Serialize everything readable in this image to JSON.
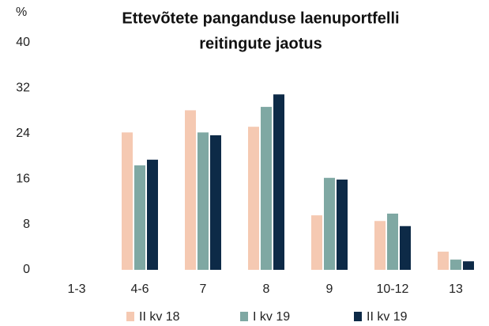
{
  "chart_data": {
    "type": "bar",
    "title": [
      "Ettevõtete panganduse laenuportfelli",
      "reitingute jaotus"
    ],
    "y_unit": "%",
    "categories": [
      "1-3",
      "4-6",
      "7",
      "8",
      "9",
      "10-12",
      "13"
    ],
    "series": [
      {
        "name": "II kv 18",
        "color": "#f5c9b2",
        "values": [
          0,
          24.2,
          28.1,
          25.2,
          9.6,
          8.6,
          3.2
        ]
      },
      {
        "name": "I kv 19",
        "color": "#7fa8a3",
        "values": [
          0,
          18.4,
          24.2,
          28.7,
          16.2,
          9.9,
          1.8
        ]
      },
      {
        "name": "II kv 19",
        "color": "#0d2a47",
        "values": [
          0,
          19.4,
          23.7,
          30.9,
          15.9,
          7.7,
          1.5
        ]
      }
    ],
    "ylim": [
      0,
      40
    ],
    "yticks": [
      0,
      8,
      16,
      24,
      32,
      40
    ],
    "grid": false,
    "legend": "bottom"
  }
}
